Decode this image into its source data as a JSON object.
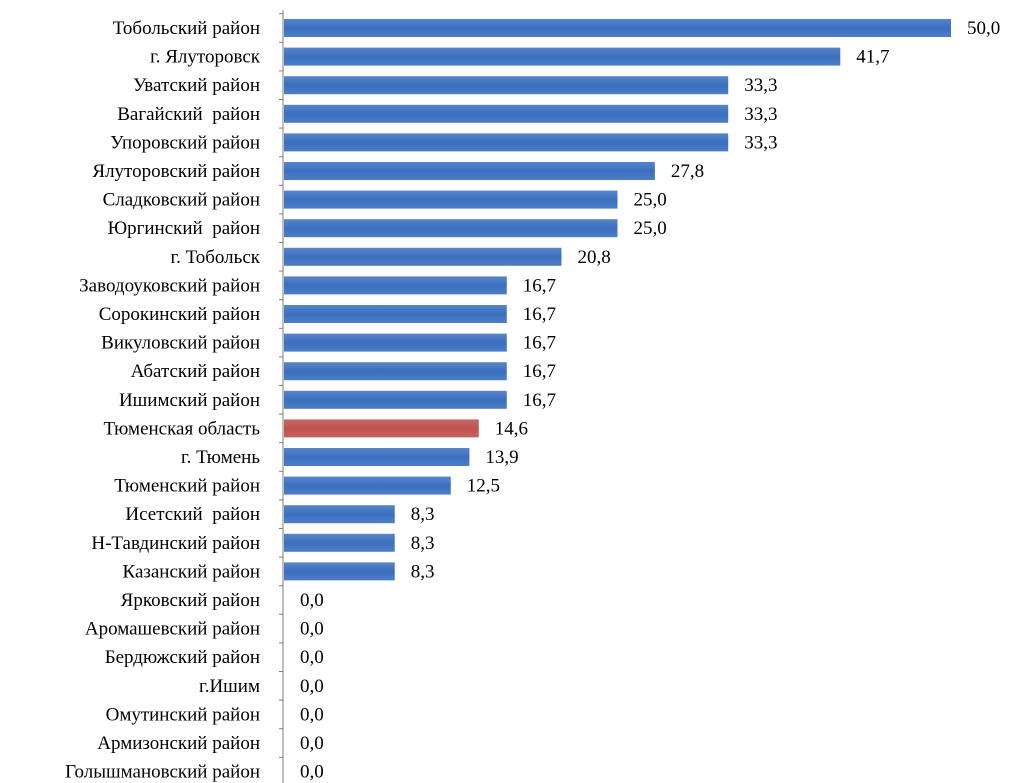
{
  "colors": {
    "bar_default": "#3a6fbf",
    "bar_highlight": "#c0504d",
    "axis": "#7f7f7f",
    "text": "#000000"
  },
  "chart_data": {
    "type": "bar",
    "orientation": "horizontal",
    "title": "",
    "xlabel": "",
    "ylabel": "",
    "xlim": [
      0,
      50
    ],
    "grid": false,
    "legend": "none",
    "highlight_category": "Тюменская область",
    "categories": [
      "Тобольский район",
      "г. Ялуторовск",
      "Уватский район",
      "Вагайский  район",
      "Упоровский район",
      "Ялуторовский район",
      "Сладковский район",
      "Юргинский  район",
      "г. Тобольск",
      "Заводоуковский район",
      "Сорокинский район",
      "Викуловский район",
      "Абатский район",
      "Ишимский район",
      "Тюменская область",
      "г. Тюмень",
      "Тюменский район",
      "Исетский  район",
      "Н-Тавдинский район",
      "Казанский район",
      "Ярковский район",
      "Аромашевский район",
      "Бердюжский район",
      "г.Ишим",
      "Омутинский район",
      "Армизонский район",
      "Голышмановский район"
    ],
    "values": [
      50.0,
      41.7,
      33.3,
      33.3,
      33.3,
      27.8,
      25.0,
      25.0,
      20.8,
      16.7,
      16.7,
      16.7,
      16.7,
      16.7,
      14.6,
      13.9,
      12.5,
      8.3,
      8.3,
      8.3,
      0.0,
      0.0,
      0.0,
      0.0,
      0.0,
      0.0,
      0.0
    ],
    "value_labels": [
      "50,0",
      "41,7",
      "33,3",
      "33,3",
      "33,3",
      "27,8",
      "25,0",
      "25,0",
      "20,8",
      "16,7",
      "16,7",
      "16,7",
      "16,7",
      "16,7",
      "14,6",
      "13,9",
      "12,5",
      "8,3",
      "8,3",
      "8,3",
      "0,0",
      "0,0",
      "0,0",
      "0,0",
      "0,0",
      "0,0",
      "0,0"
    ]
  }
}
